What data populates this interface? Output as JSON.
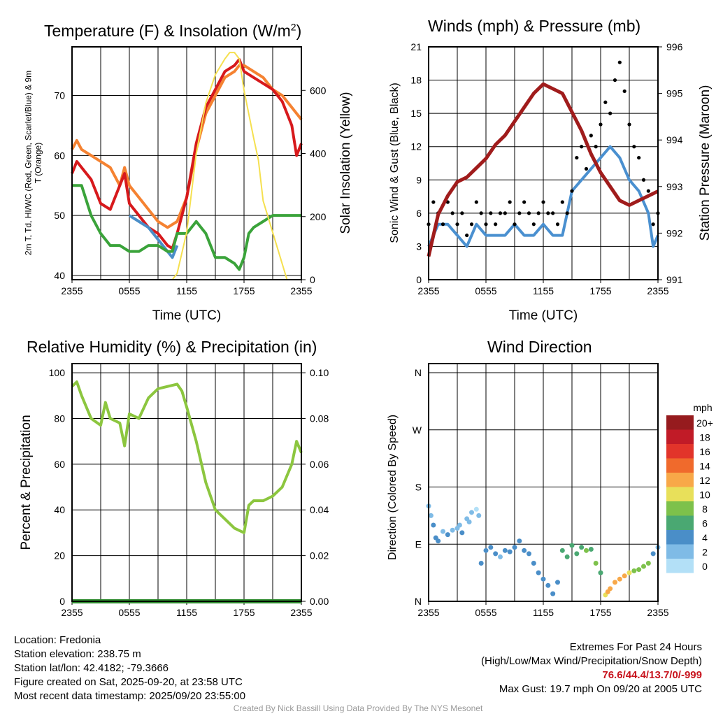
{
  "chart_data": [
    {
      "type": "line",
      "title": "Temperature (F) & Insolation (W/m2)",
      "xlabel": "Time (UTC)",
      "ylabel": "2m T, Td, HI/WC (Red, Green, Scarlet/Blue) & 9m T (Orange)",
      "ylabel_line1": "2m T, Tₐ, HI/WC (Red, Green, Scarlet/Blue)",
      "ylabel_line2": "& 9m T (Orange)",
      "y2label": "Solar Insolation (Yellow)",
      "xticks": [
        "2355",
        "0555",
        "1155",
        "1755",
        "2355"
      ],
      "yticks": [
        40,
        50,
        60,
        70
      ],
      "y2ticks": [
        0,
        200,
        400,
        600
      ],
      "ylim": [
        39.3,
        78.1
      ],
      "y2lim": [
        0,
        738
      ],
      "series": [
        {
          "name": "9m T",
          "color": "#f58231",
          "x": [
            0,
            0.5,
            1,
            2,
            3,
            4,
            5,
            5.5,
            6,
            7,
            8,
            9,
            10,
            11,
            12,
            13,
            14,
            15,
            16,
            17,
            17.5,
            18,
            19,
            20,
            21,
            22,
            23,
            24
          ],
          "y": [
            61,
            62.5,
            61,
            60,
            59,
            58,
            55,
            58,
            55,
            53,
            51,
            49,
            48,
            49,
            53,
            61,
            67,
            70,
            73,
            74,
            75,
            75,
            74,
            73,
            71,
            70,
            68,
            66
          ]
        },
        {
          "name": "2m T",
          "color": "#d7191c",
          "x": [
            0,
            0.5,
            1,
            2,
            3,
            4,
            5,
            5.5,
            6,
            7,
            8,
            9,
            10,
            10.5,
            11,
            12,
            13,
            14,
            15,
            16,
            17,
            17.5,
            18,
            19,
            20,
            21,
            22,
            23,
            23.5,
            24
          ],
          "y": [
            57,
            59,
            58,
            56,
            52,
            51,
            55,
            57,
            52,
            50,
            48,
            47,
            45,
            44.5,
            47,
            53,
            62,
            68,
            71,
            74,
            75,
            76,
            74,
            73,
            72,
            71,
            69,
            65,
            60,
            62
          ]
        },
        {
          "name": "HI/WC",
          "color": "#4a8ec8",
          "x": [
            6,
            7,
            8,
            9,
            10,
            10.5,
            11
          ],
          "y": [
            50,
            49,
            48,
            46,
            44,
            43,
            45
          ]
        },
        {
          "name": "Td",
          "color": "#3aa33a",
          "x": [
            0,
            1,
            2,
            3,
            4,
            5,
            6,
            7,
            8,
            9,
            10,
            10.5,
            11,
            12,
            13,
            14,
            15,
            16,
            17,
            17.5,
            18,
            18.5,
            19,
            20,
            21,
            22,
            23,
            24
          ],
          "y": [
            55,
            55,
            50,
            47,
            45,
            45,
            44,
            44,
            45,
            45,
            44,
            44,
            47,
            47,
            49,
            47,
            43,
            43,
            42,
            41,
            43,
            47,
            48,
            49,
            50,
            50,
            50,
            50
          ]
        },
        {
          "name": "Insolation",
          "axis": "y2",
          "color": "#f5e050",
          "x": [
            0,
            10.5,
            11,
            12,
            13,
            14,
            15,
            16,
            16.5,
            17,
            17.5,
            18,
            19,
            19.5,
            20,
            21,
            22,
            22.5,
            24
          ],
          "y": [
            0,
            0,
            20,
            150,
            400,
            560,
            650,
            700,
            720,
            720,
            700,
            600,
            450,
            380,
            250,
            150,
            50,
            0,
            0
          ]
        }
      ]
    },
    {
      "type": "line",
      "title": "Winds (mph) & Pressure (mb)",
      "xlabel": "Time (UTC)",
      "ylabel": "Sonic Wind & Gust (Blue, Black)",
      "y2label": "Station Pressure (Maroon)",
      "xticks": [
        "2355",
        "0555",
        "1155",
        "1755",
        "2355"
      ],
      "yticks": [
        0,
        3,
        6,
        9,
        12,
        15,
        18,
        21
      ],
      "y2ticks": [
        991,
        992,
        993,
        994,
        995,
        996
      ],
      "ylim": [
        0,
        21
      ],
      "y2lim": [
        991,
        996
      ],
      "series": [
        {
          "name": "Sonic Wind",
          "color": "#4a90d0",
          "x": [
            0,
            1,
            2,
            3,
            4,
            5,
            6,
            7,
            8,
            9,
            10,
            11,
            12,
            13,
            14,
            15,
            16,
            17,
            18,
            19,
            20,
            21,
            22,
            23,
            23.5,
            24
          ],
          "y": [
            3,
            5,
            5,
            4,
            3,
            5,
            4,
            4,
            4,
            5,
            4,
            4,
            5,
            4,
            4,
            8,
            9,
            10,
            11,
            12,
            11,
            9,
            8,
            6,
            3,
            4
          ]
        },
        {
          "name": "Gust",
          "type": "scatter",
          "color": "#000000",
          "x": [
            0,
            0.5,
            1,
            1.5,
            2,
            2.5,
            3,
            3.5,
            4,
            4.5,
            5,
            5.5,
            6,
            6.5,
            7,
            7.5,
            8,
            8.5,
            9,
            9.5,
            10,
            10.5,
            11,
            11.5,
            12,
            12.5,
            13,
            13.5,
            14,
            14.5,
            15,
            15.5,
            16,
            16.5,
            17,
            17.5,
            18,
            18.5,
            19,
            19.5,
            20,
            20.5,
            21,
            21.5,
            22,
            22.5,
            23,
            23.5,
            24
          ],
          "y": [
            5,
            7,
            6,
            5,
            7,
            6,
            5,
            6,
            4,
            5,
            7,
            6,
            5,
            6,
            5,
            6,
            6,
            7,
            5,
            6,
            7,
            6,
            5,
            6,
            7,
            6,
            6,
            5,
            7,
            6,
            8,
            11,
            12,
            10,
            13,
            12,
            14,
            16,
            15,
            18,
            19.6,
            17,
            14,
            12,
            11,
            9,
            8,
            5,
            6
          ]
        },
        {
          "name": "Pressure",
          "axis": "y2",
          "color": "#a01c1c",
          "x": [
            0,
            1,
            2,
            3,
            4,
            5,
            6,
            7,
            8,
            9,
            10,
            11,
            12,
            13,
            14,
            15,
            16,
            17,
            18,
            19,
            20,
            21,
            22,
            23,
            24
          ],
          "y": [
            991.5,
            992.4,
            992.8,
            993.1,
            993.2,
            993.4,
            993.6,
            993.9,
            994.1,
            994.4,
            994.7,
            995.0,
            995.2,
            995.1,
            995.0,
            994.6,
            994.2,
            993.7,
            993.3,
            993.0,
            992.7,
            992.6,
            992.7,
            992.8,
            992.9
          ]
        }
      ]
    },
    {
      "type": "line",
      "title": "Relative Humidity (%) & Precipitation (in)",
      "ylabel": "Percent & Precipitation",
      "xticks": [
        "2355",
        "0555",
        "1155",
        "1755",
        "2355"
      ],
      "yticks": [
        0,
        20,
        40,
        60,
        80,
        100
      ],
      "y2ticks": [
        "0.00",
        "0.02",
        "0.04",
        "0.06",
        "0.08",
        "0.10"
      ],
      "ylim": [
        0,
        104
      ],
      "y2lim": [
        0,
        0.104
      ],
      "series": [
        {
          "name": "RH",
          "color": "#8cc63f",
          "x": [
            0,
            0.5,
            1,
            2,
            3,
            3.5,
            4,
            5,
            5.5,
            6,
            7,
            8,
            9,
            10,
            11,
            11.5,
            12,
            13,
            14,
            15,
            16,
            17,
            18,
            18.5,
            19,
            20,
            21,
            22,
            23,
            23.5,
            24
          ],
          "y": [
            94,
            96,
            90,
            80,
            77,
            87,
            80,
            78,
            68,
            82,
            80,
            89,
            93,
            94,
            95,
            92,
            85,
            70,
            52,
            40,
            36,
            32,
            30,
            42,
            44,
            44,
            46,
            50,
            60,
            70,
            65
          ]
        },
        {
          "name": "Precipitation",
          "axis": "y2",
          "color": "#2e8b2e",
          "x": [
            0,
            24
          ],
          "y": [
            0,
            0
          ]
        }
      ]
    },
    {
      "type": "scatter",
      "title": "Wind Direction",
      "ylabel": "Direction (Colored By Speed)",
      "xticks": [
        "2355",
        "0555",
        "1155",
        "1755",
        "2355"
      ],
      "yticks": [
        "N",
        "E",
        "S",
        "W",
        "N"
      ],
      "ylim": [
        0,
        360
      ],
      "legend": {
        "title": "mph",
        "labels": [
          "20+",
          "18",
          "16",
          "14",
          "12",
          "10",
          "8",
          "6",
          "4",
          "2",
          "0"
        ],
        "colors": [
          "#961b1e",
          "#c11b27",
          "#e2342a",
          "#f06a2c",
          "#f8a848",
          "#e8e05a",
          "#7dc14b",
          "#4aa872",
          "#4a8ec8",
          "#7fbbe6",
          "#b3e0f7"
        ],
        "placement": "right"
      },
      "points": {
        "x": [
          0,
          0.25,
          0.5,
          0.75,
          1,
          1.5,
          2,
          2.5,
          3,
          3.25,
          3.5,
          4,
          4.25,
          4.5,
          5,
          5.25,
          5.5,
          6,
          6.5,
          7,
          7.5,
          8,
          8.5,
          9,
          9.5,
          10,
          10.5,
          11,
          11.5,
          12,
          12.5,
          13,
          13.5,
          14,
          14.5,
          15,
          15.5,
          16,
          16.5,
          17,
          17.5,
          18,
          18.5,
          18.75,
          19,
          19.5,
          20,
          20.5,
          21,
          21.5,
          22,
          22.5,
          23,
          23.5,
          24
        ],
        "dir": [
          150,
          135,
          120,
          100,
          95,
          110,
          105,
          112,
          115,
          120,
          108,
          130,
          125,
          140,
          145,
          135,
          60,
          80,
          85,
          75,
          70,
          80,
          78,
          85,
          95,
          80,
          75,
          60,
          45,
          35,
          25,
          12,
          30,
          80,
          70,
          88,
          75,
          85,
          80,
          82,
          60,
          45,
          10,
          15,
          20,
          30,
          35,
          40,
          45,
          48,
          50,
          55,
          60,
          75,
          85
        ],
        "speed": [
          2,
          3,
          4,
          4,
          4,
          3,
          4,
          3,
          3,
          2,
          4,
          3,
          2,
          2,
          1,
          2,
          4,
          4,
          4,
          4,
          3,
          4,
          4,
          4,
          4,
          4,
          4,
          4,
          4,
          4,
          4,
          4,
          5,
          6,
          6,
          7,
          6,
          7,
          8,
          7,
          8,
          7,
          11,
          12,
          12,
          12,
          13,
          12,
          10,
          9,
          9,
          8,
          8,
          4,
          3
        ]
      }
    }
  ],
  "footer": {
    "location": "Location: Fredonia",
    "elevation": "Station elevation: 238.75 m",
    "latlon": "Station lat/lon: 42.4182; -79.3666",
    "created": "Figure created on Sat, 2025-09-20, at 23:58 UTC",
    "recent": "Most recent data timestamp: 2025/09/20 23:55:00",
    "extremes_title": "Extremes For Past 24 Hours",
    "extremes_sub": "(High/Low/Max Wind/Precipitation/Snow Depth)",
    "extremes_values": "76.6/44.4/13.7/0/-999",
    "max_gust": "Max Gust: 19.7 mph On 09/20 at 2005 UTC",
    "credit": "Created By Nick Bassill Using Data Provided By The NYS Mesonet"
  }
}
